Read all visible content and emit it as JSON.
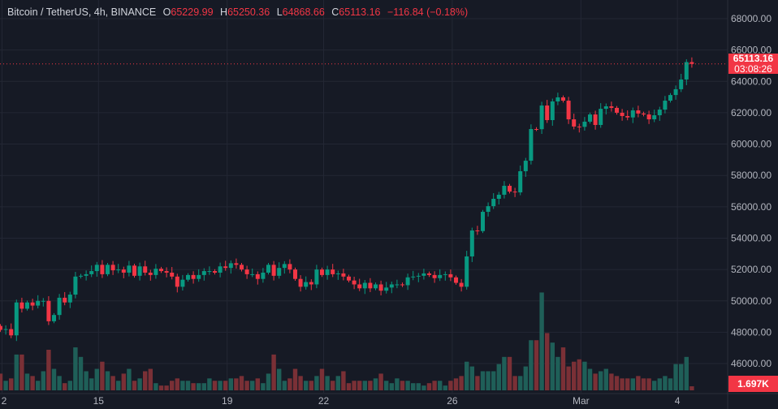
{
  "header": {
    "symbol": "Bitcoin / TetherUS, 4h, BINANCE",
    "o_label": "O",
    "o_value": "65229.99",
    "h_label": "H",
    "h_value": "65250.36",
    "l_label": "L",
    "l_value": "64868.66",
    "c_label": "C",
    "c_value": "65113.16",
    "change": "−116.84 (−0.18%)"
  },
  "last_price": {
    "value": "65113.16",
    "countdown": "03:08:26"
  },
  "last_volume": "1.697K",
  "colors": {
    "bg": "#161a25",
    "grid": "#232734",
    "up": "#089981",
    "down": "#f23645",
    "vol_up": "#1f5f58",
    "vol_down": "#7a3036"
  },
  "chart_data": {
    "type": "candlestick",
    "interval": "4h",
    "ylim": [
      45000,
      69000
    ],
    "y_ticks": [
      "68000.00",
      "66000.00",
      "64000.00",
      "62000.00",
      "60000.00",
      "58000.00",
      "56000.00",
      "54000.00",
      "52000.00",
      "50000.00",
      "48000.00",
      "46000.00"
    ],
    "x_ticks": [
      {
        "label": "2",
        "index": 0
      },
      {
        "label": "15",
        "index": 18
      },
      {
        "label": "19",
        "index": 42
      },
      {
        "label": "22",
        "index": 60
      },
      {
        "label": "26",
        "index": 84
      },
      {
        "label": "Mar",
        "index": 108
      },
      {
        "label": "4",
        "index": 126
      }
    ],
    "first_open": 48400,
    "close": [
      48150,
      48200,
      47800,
      49900,
      49500,
      49900,
      49700,
      50000,
      50000,
      48700,
      49100,
      50200,
      49900,
      50400,
      51550,
      51600,
      51700,
      51900,
      52300,
      51700,
      52300,
      51950,
      52000,
      51800,
      52250,
      51600,
      52200,
      51800,
      51650,
      52050,
      51900,
      51800,
      51550,
      50900,
      51350,
      51650,
      51400,
      51650,
      51900,
      51900,
      51800,
      52200,
      52100,
      52400,
      52300,
      52000,
      51700,
      51700,
      51400,
      51800,
      52300,
      51600,
      52100,
      52350,
      52000,
      51400,
      50900,
      51200,
      51050,
      52000,
      51650,
      52000,
      51700,
      51750,
      51550,
      51300,
      51050,
      50800,
      51150,
      50800,
      51050,
      50650,
      50850,
      51050,
      51050,
      51000,
      51500,
      51550,
      51600,
      51750,
      51650,
      51450,
      51650,
      51700,
      51500,
      51150,
      50900,
      52835,
      54490,
      54450,
      55680,
      56040,
      56510,
      56770,
      57340,
      56970,
      56920,
      58270,
      58940,
      60960,
      60950,
      62460,
      61530,
      62720,
      62980,
      62770,
      61580,
      61120,
      61100,
      61430,
      61890,
      61220,
      62250,
      62410,
      62310,
      62000,
      61790,
      61700,
      62150,
      61950,
      61890,
      61580,
      61840,
      62200,
      62770,
      63130,
      63500,
      64120,
      65230,
      65113.16
    ],
    "volume_k": [
      7,
      4,
      5,
      15,
      15,
      7,
      6,
      4,
      8,
      17,
      9,
      6,
      3,
      4,
      18,
      14,
      8,
      5,
      9,
      12,
      8,
      6,
      4,
      7,
      9,
      4,
      5,
      8,
      9,
      3,
      2,
      2,
      4,
      5,
      4,
      4,
      3,
      3,
      3,
      5,
      4,
      4,
      4,
      5,
      5,
      6,
      4,
      4,
      5,
      3,
      7,
      15,
      9,
      4,
      5,
      9,
      6,
      4,
      4,
      6,
      9,
      6,
      4,
      6,
      8,
      3,
      4,
      4,
      4,
      4,
      5,
      7,
      4,
      3,
      5,
      4,
      4,
      3,
      3,
      2,
      3,
      4,
      4,
      2,
      4,
      5,
      6,
      12,
      10,
      6,
      8,
      8,
      8,
      11,
      14,
      14,
      6,
      6,
      10,
      21,
      21,
      41,
      24,
      20,
      14,
      18,
      10,
      12,
      13,
      12,
      9,
      7,
      8,
      9,
      7,
      6,
      5,
      5,
      5,
      6,
      5,
      5,
      4,
      5,
      6,
      5,
      11,
      11,
      14,
      1.697
    ]
  }
}
